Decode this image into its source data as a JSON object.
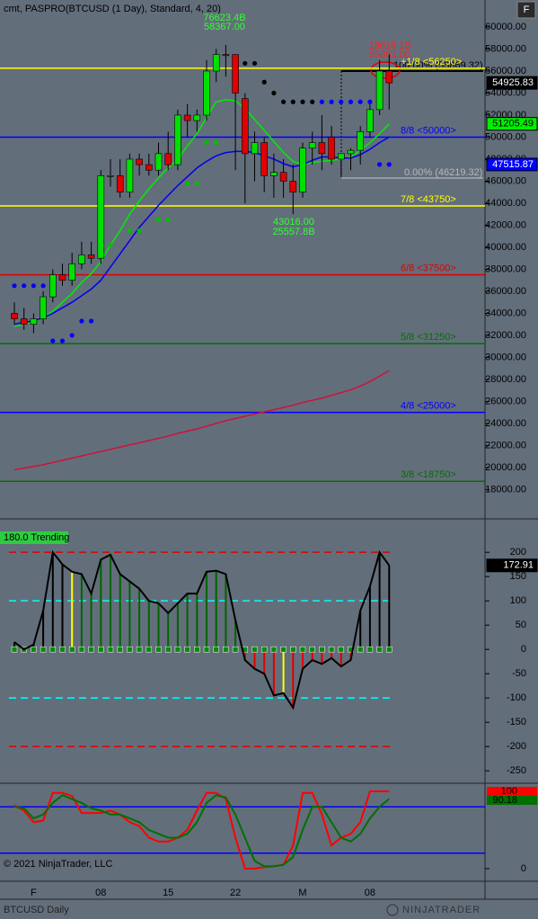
{
  "header": {
    "title": "cmt,  PASPRO(BTCUSD (1 Day), Standard, 4, 20)",
    "button": "F"
  },
  "footer": {
    "copyright": "© 2021 NinjaTrader, LLC",
    "instrument": "BTCUSD Daily",
    "logo": "NINJATRADER"
  },
  "chart_data": [
    {
      "type": "candlestick",
      "categories": [
        null,
        null,
        "F",
        null,
        null,
        null,
        null,
        null,
        null,
        "08",
        null,
        null,
        null,
        null,
        null,
        null,
        "15",
        null,
        null,
        null,
        null,
        null,
        null,
        "22",
        null,
        null,
        null,
        null,
        null,
        null,
        "M",
        null,
        null,
        null,
        null,
        null,
        null,
        "08",
        null,
        null
      ],
      "open": [
        34000,
        33500,
        33000,
        33500,
        35500,
        37500,
        37000,
        38500,
        39300,
        39000,
        46500,
        46500,
        45000,
        48000,
        47500,
        47000,
        48500,
        47500,
        52000,
        51500,
        52000,
        56000,
        57500,
        57500,
        53500,
        48500,
        49500,
        46500,
        46800,
        46000,
        45000,
        49000,
        49500,
        50000,
        48000,
        48500,
        48800,
        50500,
        52500,
        56000
      ],
      "high": [
        35000,
        34500,
        34000,
        36000,
        38000,
        38500,
        39500,
        40500,
        40500,
        47000,
        48000,
        48000,
        48500,
        48500,
        48500,
        49500,
        50500,
        52500,
        53000,
        52500,
        57000,
        58000,
        58367,
        57500,
        54000,
        50500,
        50000,
        48500,
        48000,
        47500,
        49500,
        50500,
        52000,
        51000,
        48500,
        49000,
        51000,
        53000,
        57000,
        57500
      ],
      "low": [
        33000,
        32500,
        32200,
        33000,
        35000,
        36500,
        36500,
        38000,
        38500,
        38500,
        45500,
        44500,
        44500,
        46500,
        46500,
        46500,
        47000,
        47000,
        50000,
        50500,
        51500,
        55000,
        55500,
        47000,
        44000,
        46000,
        45000,
        44500,
        44500,
        43016,
        44500,
        47500,
        47000,
        47500,
        46500,
        47000,
        47500,
        50000,
        52000,
        52500
      ],
      "close": [
        33500,
        33000,
        33500,
        35500,
        37500,
        37000,
        38500,
        39300,
        39000,
        46500,
        46500,
        45000,
        48000,
        47500,
        47000,
        48500,
        47500,
        52000,
        51500,
        52000,
        56000,
        57500,
        57400,
        54000,
        48500,
        49500,
        46500,
        46800,
        46000,
        45000,
        49000,
        49500,
        48500,
        48000,
        48500,
        48800,
        50500,
        52500,
        56000,
        54925.83
      ],
      "up_color": "#00e000",
      "down_color": "#e00000",
      "ylim": [
        15500,
        62450
      ],
      "yticks": [
        {
          "value": 60000,
          "label": "60000.00"
        },
        {
          "value": 58000,
          "label": "58000.00"
        },
        {
          "value": 56000,
          "label": "56000.00"
        },
        {
          "value": 54000,
          "label": "54000.00"
        },
        {
          "value": 52000,
          "label": "52000.00"
        },
        {
          "value": 50000,
          "label": "50000.00"
        },
        {
          "value": 48000,
          "label": "48000.00"
        },
        {
          "value": 46000,
          "label": "46000.00"
        },
        {
          "value": 44000,
          "label": "44000.00"
        },
        {
          "value": 42000,
          "label": "42000.00"
        },
        {
          "value": 40000,
          "label": "40000.00"
        },
        {
          "value": 38000,
          "label": "38000.00"
        },
        {
          "value": 36000,
          "label": "36000.00"
        },
        {
          "value": 34000,
          "label": "34000.00"
        },
        {
          "value": 32000,
          "label": "32000.00"
        },
        {
          "value": 30000,
          "label": "30000.00"
        },
        {
          "value": 28000,
          "label": "28000.00"
        },
        {
          "value": 26000,
          "label": "26000.00"
        },
        {
          "value": 24000,
          "label": "24000.00"
        },
        {
          "value": 22000,
          "label": "22000.00"
        },
        {
          "value": 20000,
          "label": "20000.00"
        },
        {
          "value": 18000,
          "label": "18000.00"
        }
      ],
      "lines": [
        {
          "color": "#00ee00",
          "values": [
            32800,
            33000,
            33200,
            33600,
            34200,
            35000,
            35800,
            36800,
            37600,
            38700,
            40200,
            41500,
            43000,
            44200,
            45300,
            46300,
            47200,
            48000,
            49200,
            50300,
            51800,
            53200,
            53400,
            53300,
            52600,
            51600,
            50600,
            49600,
            48600,
            47800,
            47500,
            47700,
            47800,
            47900,
            48000,
            48200,
            48800,
            49500,
            50300,
            51205.49
          ]
        },
        {
          "color": "#0000ee",
          "values": [
            33000,
            33200,
            33300,
            33600,
            34000,
            34500,
            35000,
            35600,
            36200,
            37000,
            38200,
            39400,
            40600,
            41800,
            42800,
            43800,
            44700,
            45600,
            46400,
            47200,
            47800,
            48300,
            48600,
            48700,
            48700,
            48600,
            48300,
            48000,
            47600,
            47300,
            47500,
            47900,
            48200,
            48200,
            48100,
            48100,
            48400,
            48900,
            49500,
            50000
          ]
        },
        {
          "color": "#d0103a",
          "values": [
            19800,
            19950,
            20100,
            20250,
            20450,
            20650,
            20850,
            21050,
            21250,
            21450,
            21650,
            21850,
            22050,
            22250,
            22450,
            22650,
            22850,
            23100,
            23300,
            23500,
            23750,
            24000,
            24250,
            24450,
            24650,
            24850,
            25050,
            25250,
            25450,
            25650,
            25900,
            26100,
            26300,
            26550,
            26800,
            27050,
            27400,
            27800,
            28300,
            28800
          ]
        }
      ],
      "dots": [
        {
          "color": "#000000",
          "values": [
            null,
            null,
            null,
            null,
            null,
            null,
            null,
            null,
            null,
            null,
            null,
            null,
            null,
            null,
            null,
            null,
            null,
            null,
            null,
            null,
            null,
            null,
            null,
            null,
            56700,
            56700,
            55000,
            54000,
            53200,
            53200,
            53200,
            53200,
            null,
            null,
            null,
            null,
            null,
            null,
            null,
            null
          ]
        },
        {
          "color": "#0000ff",
          "values": [
            36500,
            36500,
            36500,
            36500,
            31500,
            31500,
            32000,
            33300,
            33300,
            null,
            null,
            null,
            null,
            null,
            null,
            null,
            null,
            null,
            null,
            null,
            null,
            null,
            null,
            null,
            null,
            null,
            null,
            null,
            null,
            null,
            null,
            null,
            53200,
            53200,
            53200,
            53200,
            53200,
            53200,
            47515.87,
            47515.87
          ]
        },
        {
          "color": "#00c000",
          "values": [
            null,
            null,
            null,
            null,
            null,
            null,
            null,
            null,
            null,
            null,
            40200,
            null,
            41500,
            41500,
            null,
            42500,
            42500,
            null,
            45800,
            45800,
            49500,
            49500,
            null,
            null,
            null,
            null,
            null,
            null,
            null,
            null,
            null,
            null,
            null,
            null,
            null,
            null,
            null,
            null,
            null,
            null
          ]
        }
      ],
      "levels": [
        {
          "label": "+1/8 <56250>",
          "value": 56250,
          "color": "#ffff00"
        },
        {
          "label": "8/8 <50000>",
          "value": 50000,
          "color": "#0000ff"
        },
        {
          "label": "7/8 <43750>",
          "value": 43750,
          "color": "#ffff00"
        },
        {
          "label": "6/8 <37500>",
          "value": 37500,
          "color": "#e00000"
        },
        {
          "label": "5/8 <31250>",
          "value": 31250,
          "color": "#007000"
        },
        {
          "label": "4/8 <25000>",
          "value": 25000,
          "color": "#0000ff"
        },
        {
          "label": "3/8 <18750>",
          "value": 18750,
          "color": "#007000"
        }
      ],
      "annotations": [
        "76623.4B",
        "58367.00",
        "43016.00",
        "25557.8B",
        "19016.1B",
        "55861.00",
        "100.00% (55869.32)",
        "0.00% (46219.32)"
      ],
      "badges": [
        {
          "source": "close",
          "color": "#000000",
          "text_color": "#ffffff"
        },
        {
          "source": "line",
          "color": "#00ee00",
          "text_color": "#000000"
        },
        {
          "source": "dots",
          "color": "#0000ff",
          "text_color": "#ffffff"
        }
      ]
    },
    {
      "type": "oscillator",
      "label": "180.0 Trending",
      "values": [
        15,
        0,
        10,
        80,
        200,
        175,
        160,
        155,
        115,
        185,
        195,
        155,
        140,
        125,
        100,
        95,
        75,
        95,
        115,
        115,
        160,
        162,
        155,
        60,
        -22,
        -40,
        -50,
        -95,
        -90,
        -120,
        -40,
        -22,
        -30,
        -18,
        -35,
        -22,
        80,
        130,
        200,
        172.91
      ],
      "bar_colors": [
        "#000000",
        "#000000",
        "#000000",
        "#000000",
        "#000000",
        "#000000",
        "#ffff00",
        "#006400",
        "#006400",
        "#006400",
        "#006400",
        "#006400",
        "#006400",
        "#006400",
        "#006400",
        "#006400",
        "#006400",
        "#006400",
        "#006400",
        "#006400",
        "#006400",
        "#006400",
        "#006400",
        "#006400",
        "#e00000",
        "#e00000",
        "#e00000",
        "#e00000",
        "#ffff00",
        "#e00000",
        "#e00000",
        "#e00000",
        "#e00000",
        "#e00000",
        "#e00000",
        "#e00000",
        "#000000",
        "#000000",
        "#000000",
        "#000000"
      ],
      "line_color": "#000000",
      "ylim": [
        -270,
        267
      ],
      "yticks": [
        200,
        150,
        100,
        50,
        0,
        -50,
        -100,
        -150,
        -200,
        -250
      ],
      "levels": [
        {
          "value": 200,
          "color": "#e00000"
        },
        {
          "value": 100,
          "color": "#00ffff"
        },
        {
          "value": -100,
          "color": "#00ffff"
        },
        {
          "value": -200,
          "color": "#e00000"
        }
      ]
    },
    {
      "type": "stochastic",
      "series": [
        {
          "color": "#ff0000",
          "values": [
            82,
            75,
            60,
            62,
            98,
            98,
            94,
            72,
            72,
            72,
            75,
            70,
            60,
            55,
            40,
            35,
            35,
            40,
            50,
            75,
            98,
            98,
            90,
            40,
            0,
            0,
            2,
            3,
            5,
            30,
            98,
            98,
            70,
            30,
            40,
            45,
            60,
            100,
            100,
            100
          ]
        },
        {
          "color": "#007000",
          "values": [
            80,
            78,
            65,
            70,
            85,
            95,
            90,
            85,
            78,
            75,
            70,
            70,
            65,
            60,
            50,
            45,
            40,
            40,
            45,
            60,
            85,
            95,
            92,
            70,
            40,
            10,
            3,
            3,
            5,
            15,
            50,
            80,
            80,
            60,
            40,
            35,
            45,
            65,
            80,
            90.18
          ]
        }
      ],
      "ylim": [
        -16.3,
        109.3
      ],
      "yticks": [
        0
      ],
      "levels": [
        {
          "value": 80,
          "color": "#0000ff"
        },
        {
          "value": 20,
          "color": "#0000ff"
        }
      ]
    }
  ]
}
